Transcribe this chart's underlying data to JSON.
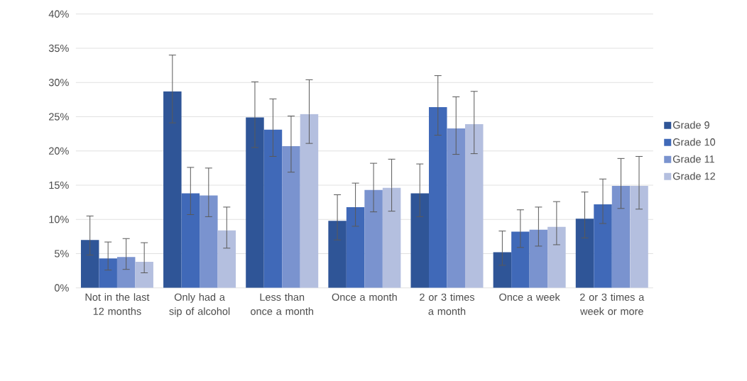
{
  "chart_data": {
    "type": "bar",
    "categories": [
      "Not in the last 12 months",
      "Only had a sip of alcohol",
      "Less than once a month",
      "Once a month",
      "2 or 3 times a month",
      "Once a week",
      "2 or 3 times a week or more"
    ],
    "series": [
      {
        "name": "Grade 9",
        "color": "#2f5597",
        "values": [
          7.0,
          28.7,
          24.9,
          9.8,
          13.8,
          5.2,
          10.1
        ],
        "errors": [
          [
            4.8,
            10.5
          ],
          [
            24.1,
            34.0
          ],
          [
            20.5,
            30.1
          ],
          [
            7.0,
            13.6
          ],
          [
            10.4,
            18.1
          ],
          [
            3.3,
            8.3
          ],
          [
            7.3,
            14.0
          ]
        ]
      },
      {
        "name": "Grade 10",
        "color": "#4069b8",
        "values": [
          4.3,
          13.8,
          23.1,
          11.8,
          26.4,
          8.2,
          12.2
        ],
        "errors": [
          [
            2.6,
            6.7
          ],
          [
            10.7,
            17.6
          ],
          [
            19.2,
            27.6
          ],
          [
            9.0,
            15.3
          ],
          [
            22.3,
            31.0
          ],
          [
            5.9,
            11.4
          ],
          [
            9.4,
            15.9
          ]
        ]
      },
      {
        "name": "Grade 11",
        "color": "#7a93cf",
        "values": [
          4.5,
          13.5,
          20.7,
          14.3,
          23.3,
          8.5,
          14.9
        ],
        "errors": [
          [
            2.7,
            7.2
          ],
          [
            10.4,
            17.5
          ],
          [
            16.9,
            25.1
          ],
          [
            11.1,
            18.2
          ],
          [
            19.5,
            27.9
          ],
          [
            6.1,
            11.8
          ],
          [
            11.6,
            18.9
          ]
        ]
      },
      {
        "name": "Grade 12",
        "color": "#b4bfdf",
        "values": [
          3.8,
          8.4,
          25.4,
          14.6,
          23.9,
          8.9,
          14.9
        ],
        "errors": [
          [
            2.2,
            6.6
          ],
          [
            5.8,
            11.8
          ],
          [
            21.1,
            30.4
          ],
          [
            11.2,
            18.8
          ],
          [
            19.6,
            28.7
          ],
          [
            6.3,
            12.6
          ],
          [
            11.5,
            19.2
          ]
        ]
      }
    ],
    "ylim": [
      0,
      40
    ],
    "yticks": [
      {
        "value": 0,
        "label": "0%"
      },
      {
        "value": 5,
        "label": "5%"
      },
      {
        "value": 10,
        "label": "10%"
      },
      {
        "value": 15,
        "label": "15%"
      },
      {
        "value": 20,
        "label": "20%"
      },
      {
        "value": 25,
        "label": "25%"
      },
      {
        "value": 30,
        "label": "30%"
      },
      {
        "value": 35,
        "label": "35%"
      },
      {
        "value": 40,
        "label": "40%"
      }
    ],
    "grid": "y",
    "legend": "right"
  }
}
